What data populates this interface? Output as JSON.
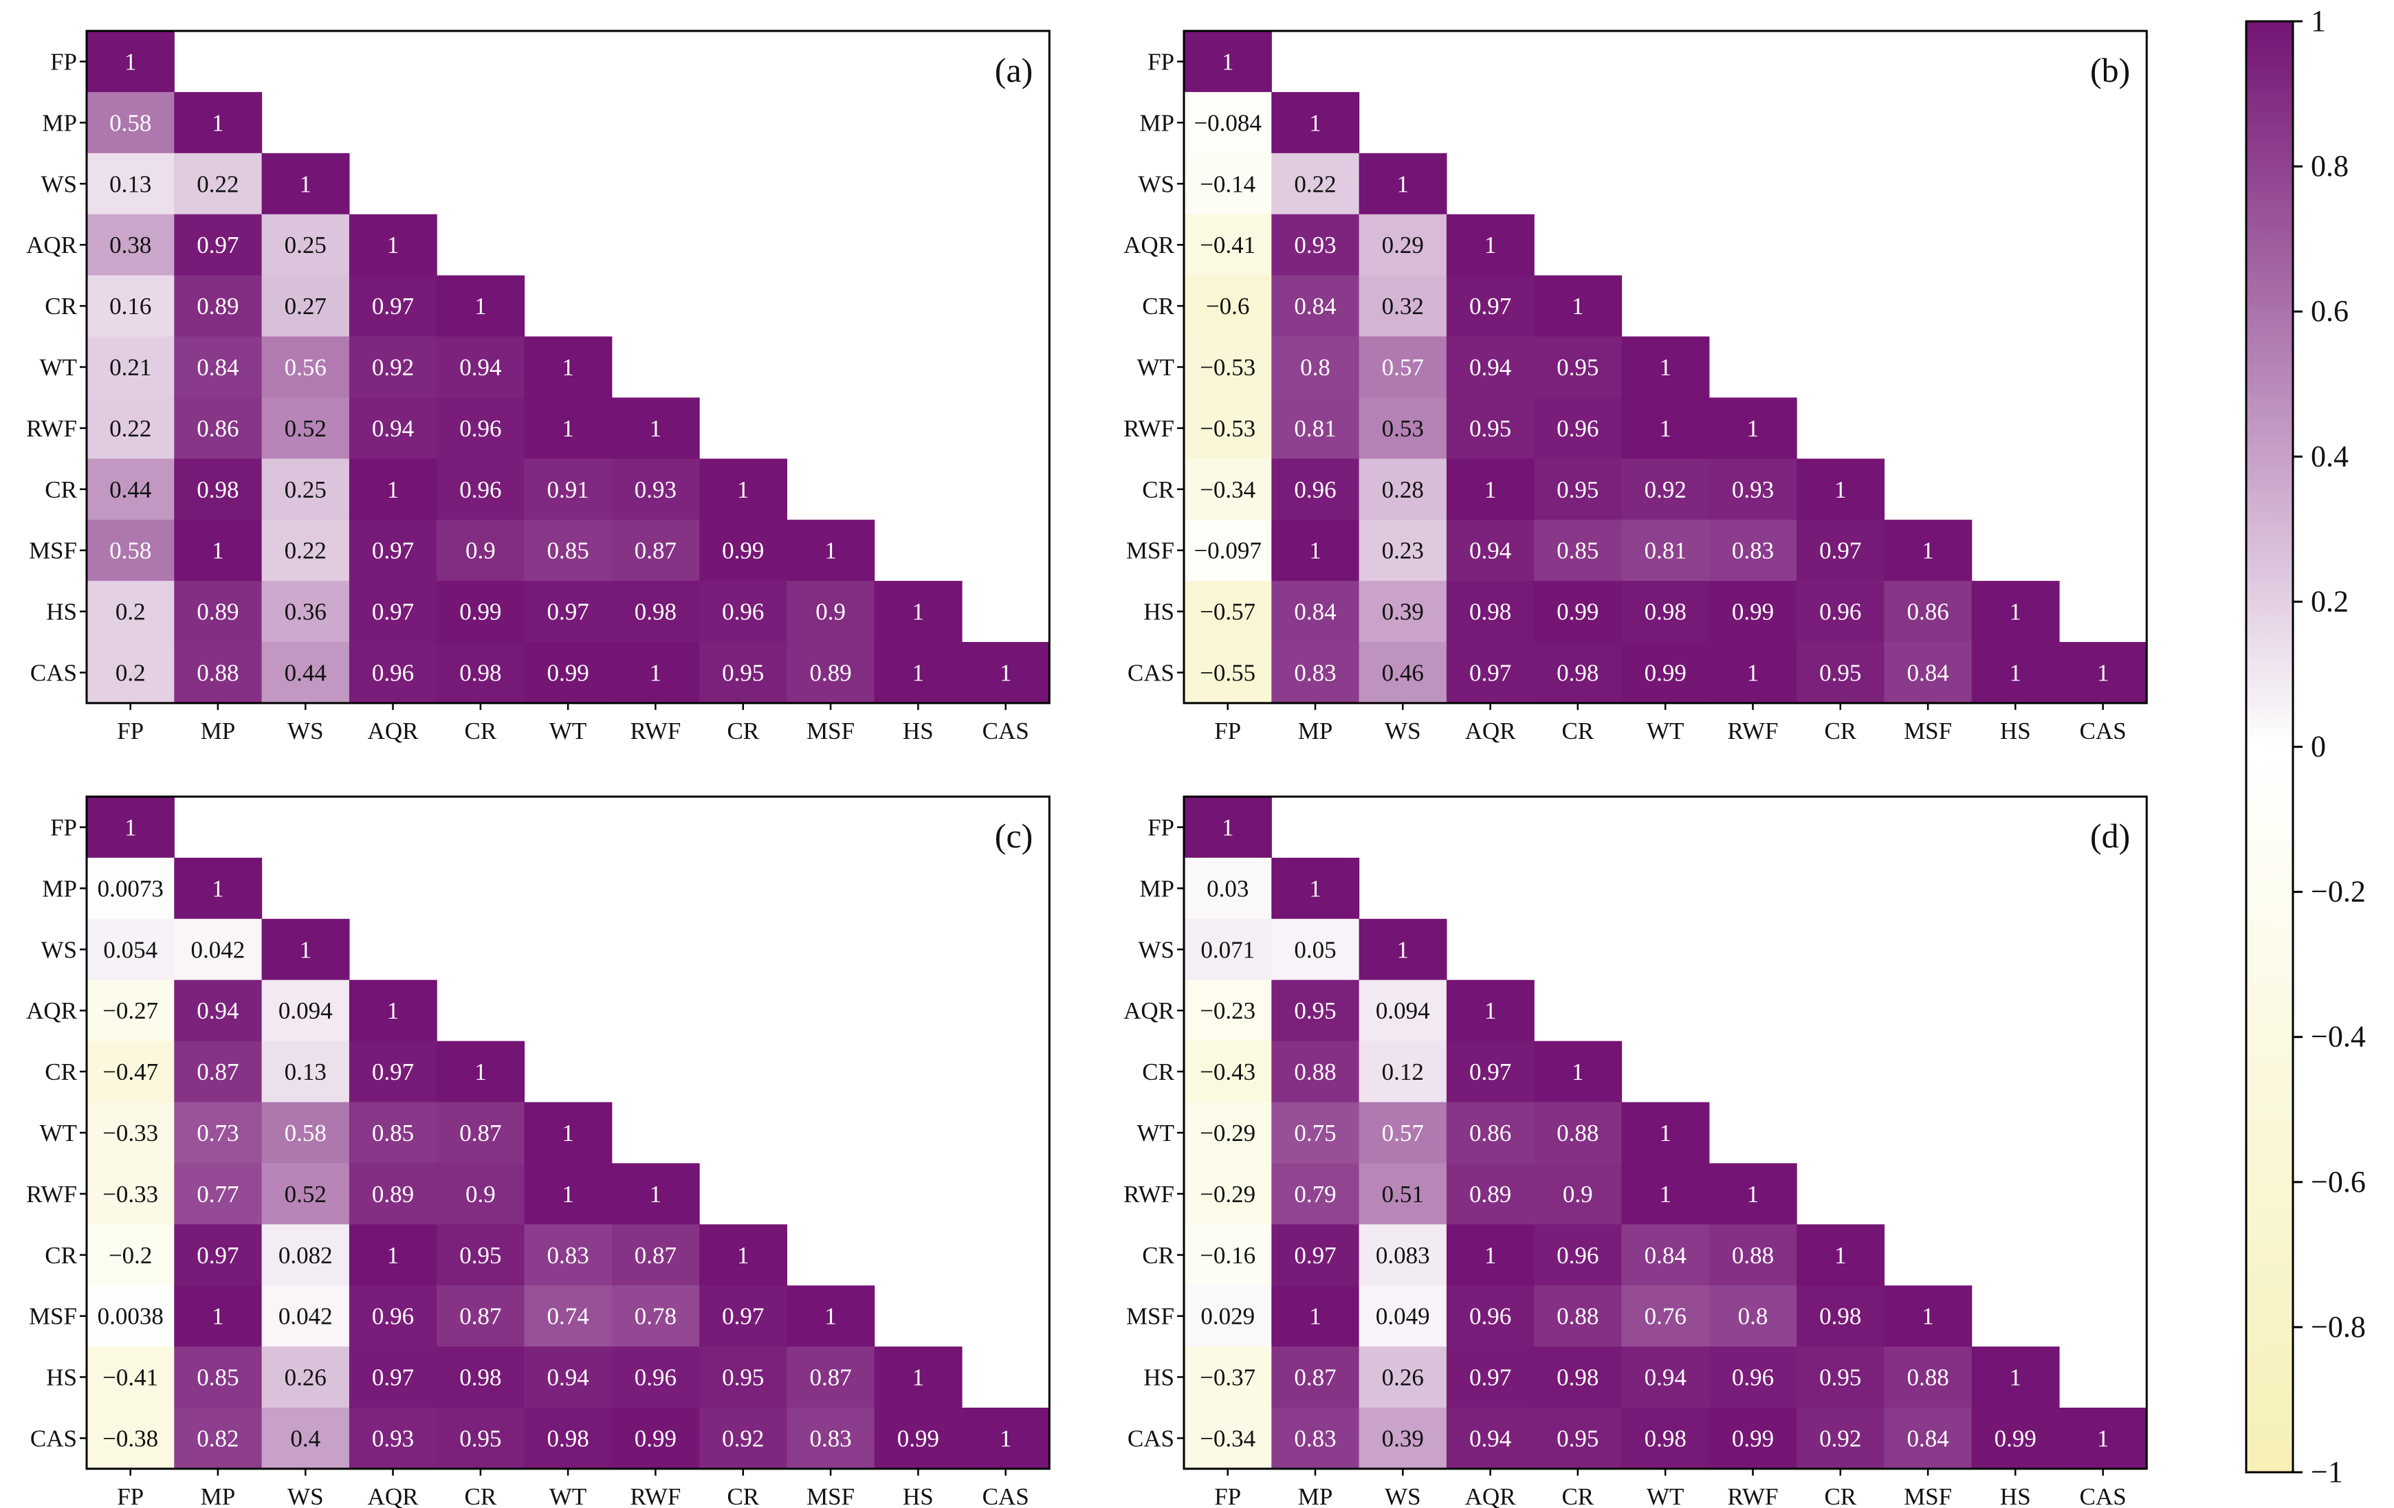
{
  "chart_data": {
    "type": "heatmap",
    "variables": [
      "FP",
      "MP",
      "WS",
      "AQR",
      "CR",
      "WT",
      "RWF",
      "CR",
      "MSF",
      "HS",
      "CAS"
    ],
    "colorbar": {
      "min": -1,
      "max": 1,
      "ticks": [
        "1",
        "0.8",
        "0.6",
        "0.4",
        "0.2",
        "0",
        "−0.2",
        "−0.4",
        "−0.6",
        "−0.8",
        "−1"
      ],
      "low_color": "#f6f0b6",
      "mid_color": "#ffffff",
      "high_color": "#741474"
    },
    "panels": [
      {
        "label": "(a)",
        "rows": [
          [
            "1"
          ],
          [
            "0.58",
            "1"
          ],
          [
            "0.13",
            "0.22",
            "1"
          ],
          [
            "0.38",
            "0.97",
            "0.25",
            "1"
          ],
          [
            "0.16",
            "0.89",
            "0.27",
            "0.97",
            "1"
          ],
          [
            "0.21",
            "0.84",
            "0.56",
            "0.92",
            "0.94",
            "1"
          ],
          [
            "0.22",
            "0.86",
            "0.52",
            "0.94",
            "0.96",
            "1",
            "1"
          ],
          [
            "0.44",
            "0.98",
            "0.25",
            "1",
            "0.96",
            "0.91",
            "0.93",
            "1"
          ],
          [
            "0.58",
            "1",
            "0.22",
            "0.97",
            "0.9",
            "0.85",
            "0.87",
            "0.99",
            "1"
          ],
          [
            "0.2",
            "0.89",
            "0.36",
            "0.97",
            "0.99",
            "0.97",
            "0.98",
            "0.96",
            "0.9",
            "1"
          ],
          [
            "0.2",
            "0.88",
            "0.44",
            "0.96",
            "0.98",
            "0.99",
            "1",
            "0.95",
            "0.89",
            "1",
            "1"
          ]
        ]
      },
      {
        "label": "(b)",
        "rows": [
          [
            "1"
          ],
          [
            "−0.084",
            "1"
          ],
          [
            "−0.14",
            "0.22",
            "1"
          ],
          [
            "−0.41",
            "0.93",
            "0.29",
            "1"
          ],
          [
            "−0.6",
            "0.84",
            "0.32",
            "0.97",
            "1"
          ],
          [
            "−0.53",
            "0.8",
            "0.57",
            "0.94",
            "0.95",
            "1"
          ],
          [
            "−0.53",
            "0.81",
            "0.53",
            "0.95",
            "0.96",
            "1",
            "1"
          ],
          [
            "−0.34",
            "0.96",
            "0.28",
            "1",
            "0.95",
            "0.92",
            "0.93",
            "1"
          ],
          [
            "−0.097",
            "1",
            "0.23",
            "0.94",
            "0.85",
            "0.81",
            "0.83",
            "0.97",
            "1"
          ],
          [
            "−0.57",
            "0.84",
            "0.39",
            "0.98",
            "0.99",
            "0.98",
            "0.99",
            "0.96",
            "0.86",
            "1"
          ],
          [
            "−0.55",
            "0.83",
            "0.46",
            "0.97",
            "0.98",
            "0.99",
            "1",
            "0.95",
            "0.84",
            "1",
            "1"
          ]
        ]
      },
      {
        "label": "(c)",
        "rows": [
          [
            "1"
          ],
          [
            "0.0073",
            "1"
          ],
          [
            "0.054",
            "0.042",
            "1"
          ],
          [
            "−0.27",
            "0.94",
            "0.094",
            "1"
          ],
          [
            "−0.47",
            "0.87",
            "0.13",
            "0.97",
            "1"
          ],
          [
            "−0.33",
            "0.73",
            "0.58",
            "0.85",
            "0.87",
            "1"
          ],
          [
            "−0.33",
            "0.77",
            "0.52",
            "0.89",
            "0.9",
            "1",
            "1"
          ],
          [
            "−0.2",
            "0.97",
            "0.082",
            "1",
            "0.95",
            "0.83",
            "0.87",
            "1"
          ],
          [
            "0.0038",
            "1",
            "0.042",
            "0.96",
            "0.87",
            "0.74",
            "0.78",
            "0.97",
            "1"
          ],
          [
            "−0.41",
            "0.85",
            "0.26",
            "0.97",
            "0.98",
            "0.94",
            "0.96",
            "0.95",
            "0.87",
            "1"
          ],
          [
            "−0.38",
            "0.82",
            "0.4",
            "0.93",
            "0.95",
            "0.98",
            "0.99",
            "0.92",
            "0.83",
            "0.99",
            "1"
          ]
        ]
      },
      {
        "label": "(d)",
        "rows": [
          [
            "1"
          ],
          [
            "0.03",
            "1"
          ],
          [
            "0.071",
            "0.05",
            "1"
          ],
          [
            "−0.23",
            "0.95",
            "0.094",
            "1"
          ],
          [
            "−0.43",
            "0.88",
            "0.12",
            "0.97",
            "1"
          ],
          [
            "−0.29",
            "0.75",
            "0.57",
            "0.86",
            "0.88",
            "1"
          ],
          [
            "−0.29",
            "0.79",
            "0.51",
            "0.89",
            "0.9",
            "1",
            "1"
          ],
          [
            "−0.16",
            "0.97",
            "0.083",
            "1",
            "0.96",
            "0.84",
            "0.88",
            "1"
          ],
          [
            "0.029",
            "1",
            "0.049",
            "0.96",
            "0.88",
            "0.76",
            "0.8",
            "0.98",
            "1"
          ],
          [
            "−0.37",
            "0.87",
            "0.26",
            "0.97",
            "0.98",
            "0.94",
            "0.96",
            "0.95",
            "0.88",
            "1"
          ],
          [
            "−0.34",
            "0.83",
            "0.39",
            "0.94",
            "0.95",
            "0.98",
            "0.99",
            "0.92",
            "0.84",
            "0.99",
            "1"
          ]
        ]
      }
    ]
  }
}
